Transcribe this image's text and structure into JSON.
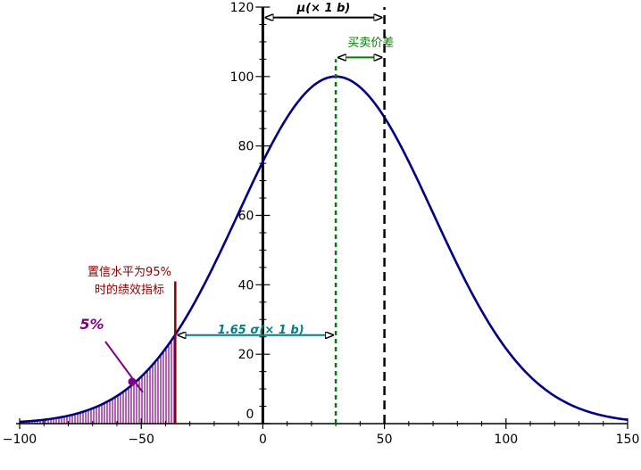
{
  "chart_data": {
    "type": "area",
    "title": "",
    "xlabel": "",
    "ylabel": "",
    "xlim": [
      -100,
      150
    ],
    "ylim": [
      0,
      120
    ],
    "x_ticks": [
      -100,
      -50,
      0,
      50,
      100,
      150
    ],
    "x_tick_labels": [
      "−100",
      "−50",
      "0",
      "50",
      "100",
      "150"
    ],
    "y_ticks": [
      0,
      20,
      40,
      60,
      80,
      100,
      120
    ],
    "y_tick_labels": [
      "0",
      "20",
      "40",
      "60",
      "80",
      "100",
      "120"
    ],
    "grid": false,
    "series": [
      {
        "kind": "normal-curve",
        "mean": 30,
        "sd": 40,
        "peak": 100,
        "color": "#000080"
      }
    ],
    "shaded_region": {
      "from": -100,
      "to": -36,
      "color": "#800080",
      "hatch": "vertical-lines"
    },
    "markers": [
      {
        "name": "var-line",
        "x": -36,
        "color": "#8b0000"
      },
      {
        "name": "mean-line",
        "x": 30,
        "color": "#008000",
        "style": "dashed"
      },
      {
        "name": "mu-line",
        "x": 50,
        "color": "#000000",
        "style": "dashed"
      }
    ],
    "annotations": {
      "mu_label": "μ(× 1 b)",
      "spread_label": "买卖价差",
      "sigma_label": "1.65 σ(× 1 b)",
      "var_label_line1": "置信水平为95%",
      "var_label_line2": "时的绩效指标",
      "tail_label": "5%"
    },
    "colors": {
      "curve": "#000080",
      "tail": "#800080",
      "var": "#8b0000",
      "spread": "#008000",
      "sigma": "#008080",
      "axis": "#000000"
    }
  }
}
